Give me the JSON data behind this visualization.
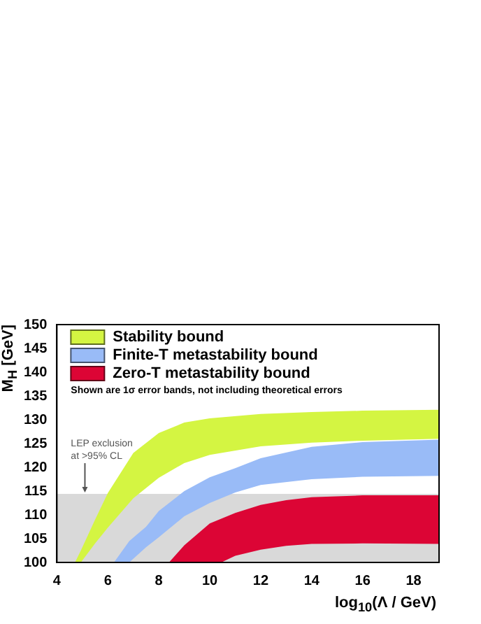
{
  "chart_data": {
    "type": "area",
    "xlabel": "log$_{10}$(Λ / GeV)",
    "ylabel": "M$_{H}$ [GeV]",
    "xlim": [
      4,
      19
    ],
    "xticks": [
      4,
      6,
      8,
      10,
      12,
      14,
      16,
      18
    ],
    "ylim": [
      100,
      150
    ],
    "yticks": [
      100,
      105,
      110,
      115,
      120,
      125,
      130,
      135,
      140,
      145,
      150
    ],
    "grid": false,
    "legend": "top left",
    "series": [
      {
        "name": "Stability bound",
        "color": "#d4f542",
        "x": [
          4.71,
          4.94,
          5.5,
          6,
          7,
          8,
          9,
          10,
          12,
          14,
          16,
          19
        ],
        "values": [
          null,
          null,
          null,
          null,
          null,
          null,
          null,
          null,
          null,
          null,
          null,
          null
        ],
        "lower": [
          100,
          100,
          104,
          107.3,
          113.5,
          117.8,
          120.9,
          122.6,
          124.4,
          125.2,
          125.6,
          126.0
        ],
        "upper": [
          100,
          102.5,
          109,
          114.6,
          123,
          127.2,
          129.4,
          130.3,
          131.2,
          131.6,
          131.9,
          132.1
        ]
      },
      {
        "name": "Finite-T metastability bound",
        "color": "#99bbf7",
        "x": [
          6.24,
          6.84,
          7.5,
          8,
          9,
          10,
          11,
          12,
          14,
          16,
          19
        ],
        "values": [
          null,
          null,
          null,
          null,
          null,
          null,
          null,
          null,
          null,
          null,
          null
        ],
        "lower": [
          100,
          100,
          103.2,
          105.3,
          109.7,
          112.5,
          114.7,
          116.3,
          117.5,
          118.0,
          118.2
        ],
        "upper": [
          100,
          104.5,
          107.5,
          110.8,
          115,
          117.9,
          119.8,
          121.9,
          124.3,
          125.3,
          125.8
        ]
      },
      {
        "name": "Zero-T metastability bound",
        "color": "#dc0535",
        "x": [
          8.4,
          9,
          10,
          10.45,
          11,
          12,
          13,
          14,
          16,
          19
        ],
        "values": [
          null,
          null,
          null,
          null,
          null,
          null,
          null,
          null,
          null,
          null
        ],
        "lower": [
          100,
          100,
          100,
          100,
          101.4,
          102.7,
          103.5,
          103.9,
          104,
          103.9
        ],
        "upper": [
          100,
          103.6,
          108.2,
          109.2,
          110.4,
          112.1,
          113.1,
          113.7,
          114.1,
          114.1
        ]
      }
    ],
    "bands": [
      {
        "axis": "y",
        "from": 100,
        "to": 114.4,
        "color": "#d9d9d9"
      }
    ],
    "annotations": [
      "Shown are 1σ error bands, not including theoretical errors",
      {
        "text": "LEP exclusion at >95% CL",
        "x": 5.1,
        "y": 114.4
      }
    ]
  }
}
